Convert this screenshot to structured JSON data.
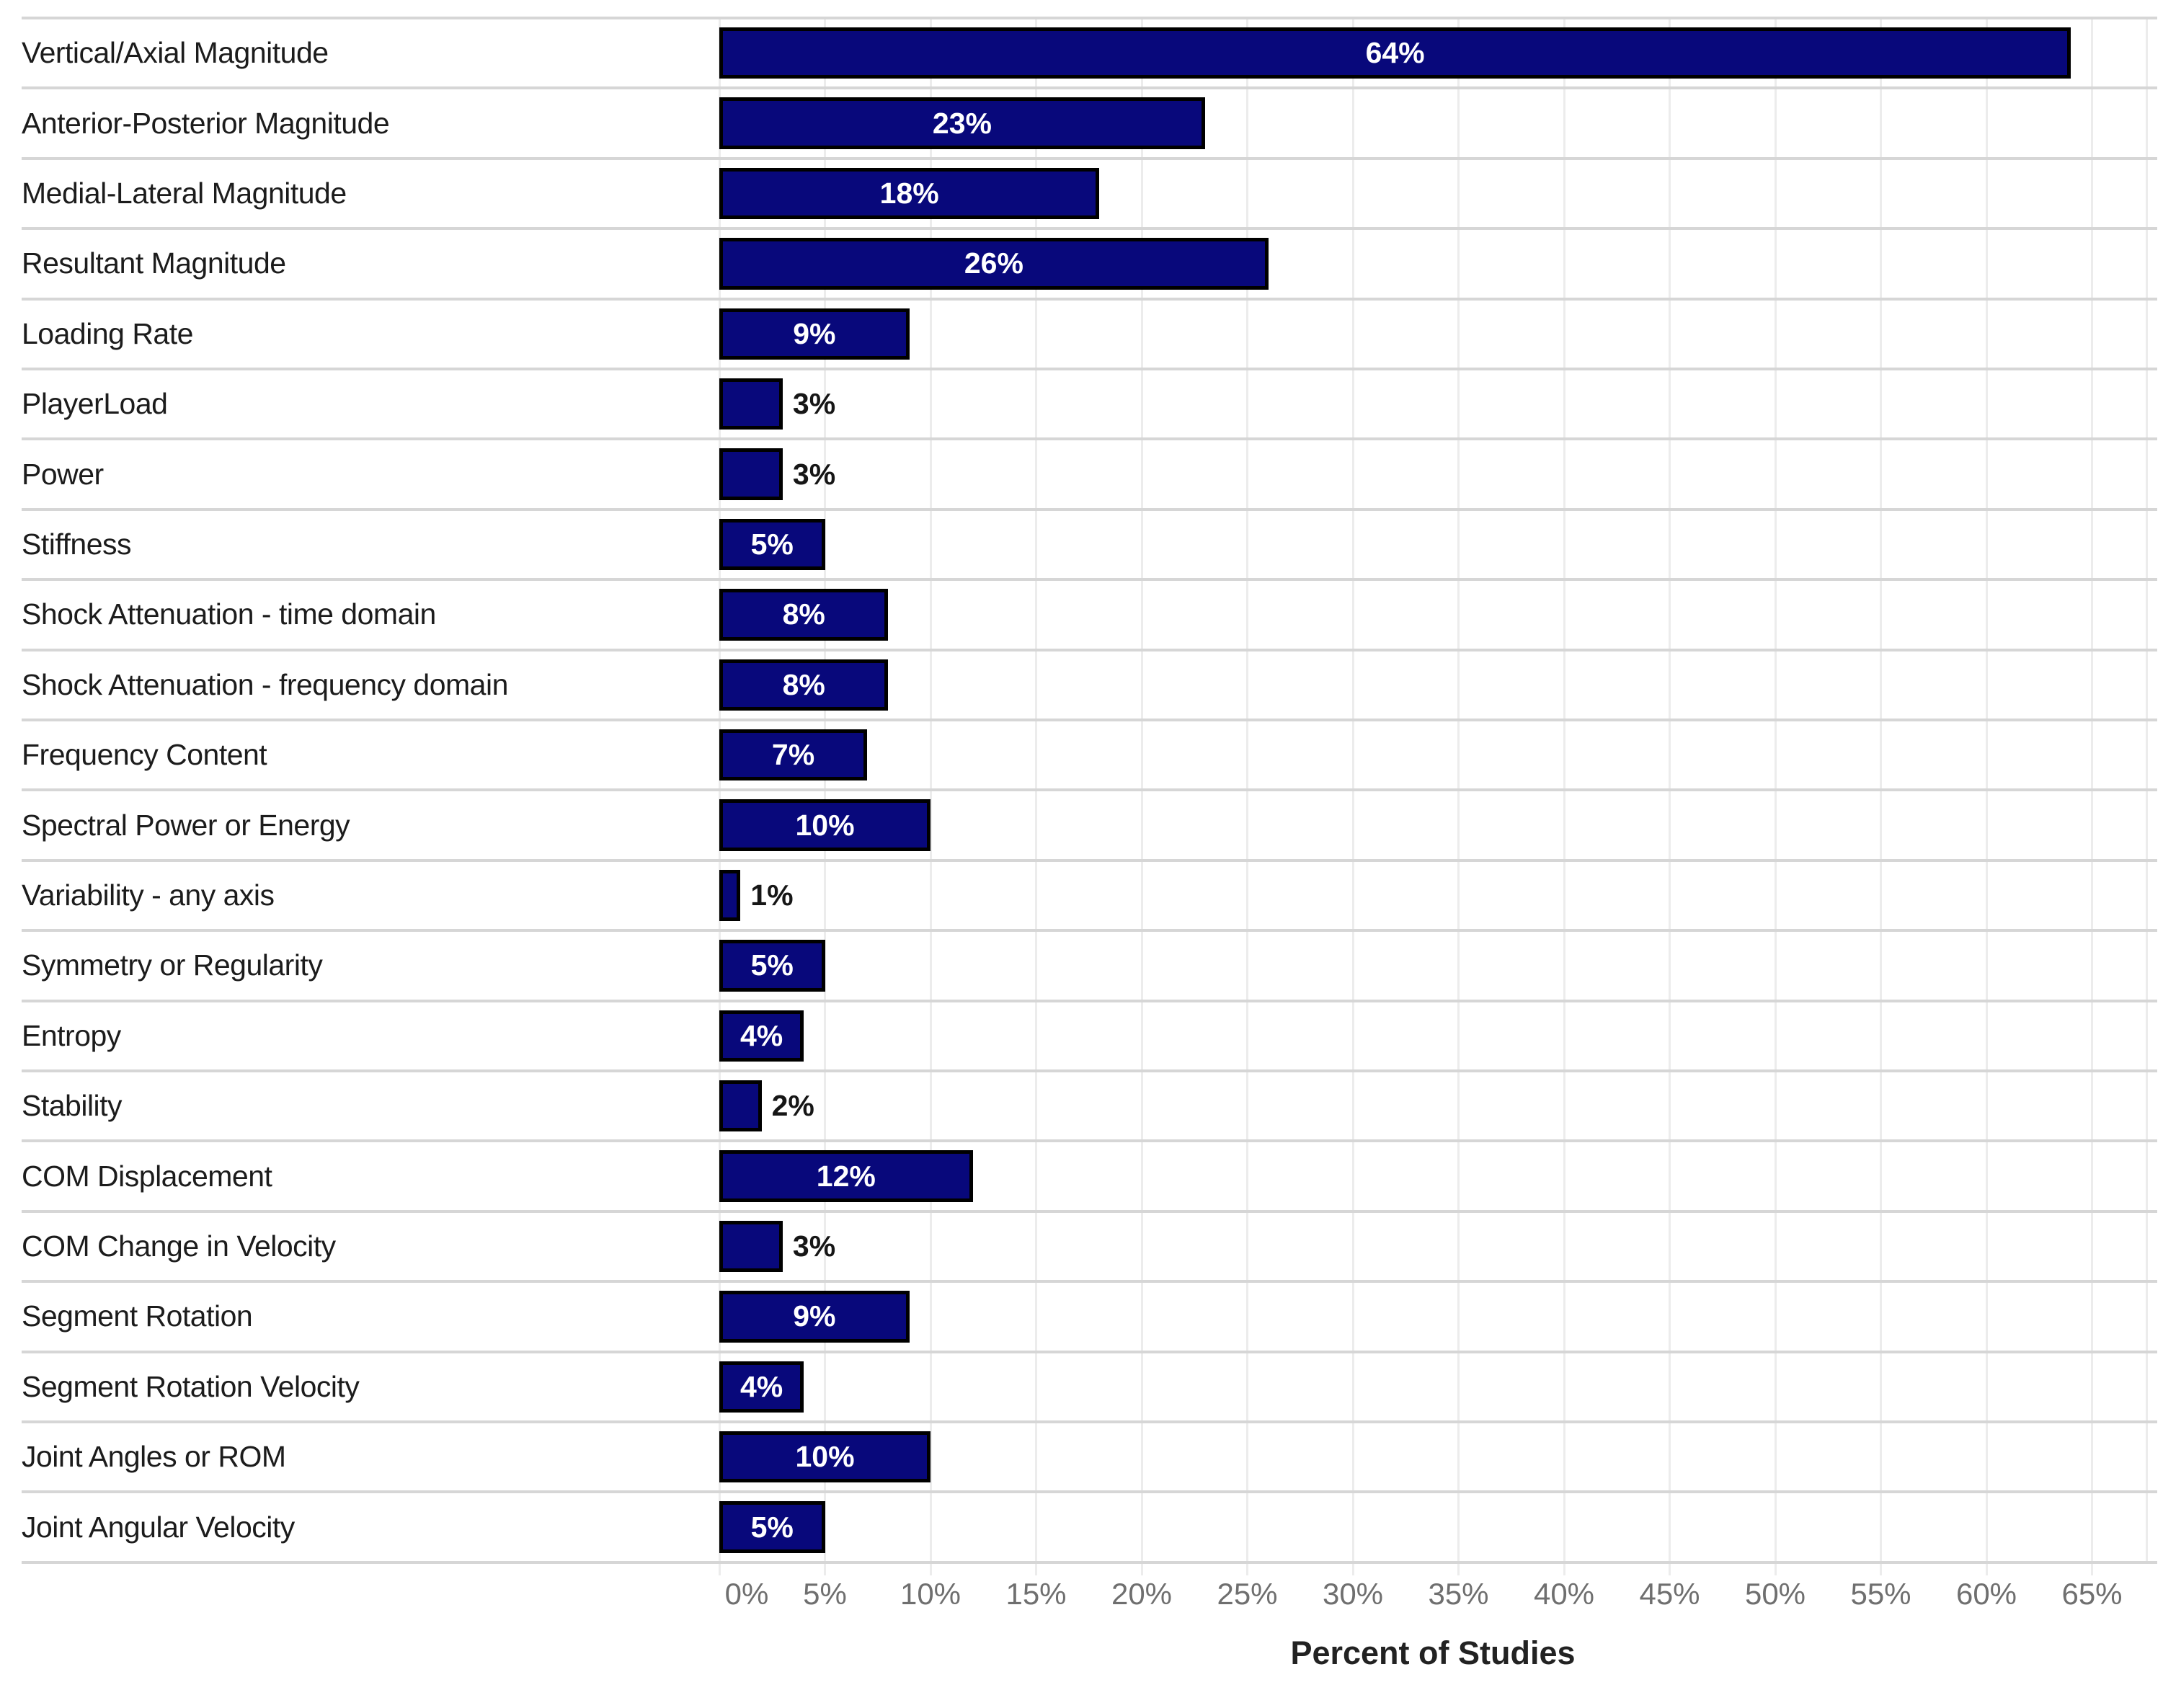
{
  "chart_data": {
    "type": "bar",
    "orientation": "horizontal",
    "title": "",
    "xlabel": "Percent of Studies",
    "ylabel": "",
    "categories": [
      "Vertical/Axial Magnitude",
      "Anterior-Posterior Magnitude",
      "Medial-Lateral Magnitude",
      "Resultant Magnitude",
      "Loading Rate",
      "PlayerLoad",
      "Power",
      "Stiffness",
      "Shock Attenuation - time domain",
      "Shock Attenuation - frequency domain",
      "Frequency Content",
      "Spectral Power or Energy",
      "Variability - any axis",
      "Symmetry or Regularity",
      "Entropy",
      "Stability",
      "COM Displacement",
      "COM Change in Velocity",
      "Segment Rotation",
      "Segment Rotation Velocity",
      "Joint Angles or ROM",
      "Joint Angular Velocity"
    ],
    "values": [
      64,
      23,
      18,
      26,
      9,
      3,
      3,
      5,
      8,
      8,
      7,
      10,
      1,
      5,
      4,
      2,
      12,
      3,
      9,
      4,
      10,
      5
    ],
    "value_labels": [
      "64%",
      "23%",
      "18%",
      "26%",
      "9%",
      "3%",
      "3%",
      "5%",
      "8%",
      "8%",
      "7%",
      "10%",
      "1%",
      "5%",
      "4%",
      "2%",
      "12%",
      "3%",
      "9%",
      "4%",
      "10%",
      "5%"
    ],
    "x_tick_values": [
      0,
      5,
      10,
      15,
      20,
      25,
      30,
      35,
      40,
      45,
      50,
      55,
      60,
      65
    ],
    "x_tick_labels": [
      "0%",
      "5%",
      "10%",
      "15%",
      "20%",
      "25%",
      "30%",
      "35%",
      "40%",
      "45%",
      "50%",
      "55%",
      "60%",
      "65%"
    ],
    "xlim": [
      0,
      67.6
    ],
    "grid": true,
    "legend_position": "none",
    "label_inside_min_value": 4,
    "colors": {
      "bar_fill": "#08087b",
      "bar_border": "#000000",
      "value_label_inside": "#ffffff",
      "value_label_outside": "#161616",
      "category_label": "#1c1c1c",
      "tick_label": "#6f6f6f",
      "axis_title": "#222222",
      "row_separator": "#d6d6d6",
      "gridline": "#ececec",
      "background": "#ffffff"
    }
  }
}
